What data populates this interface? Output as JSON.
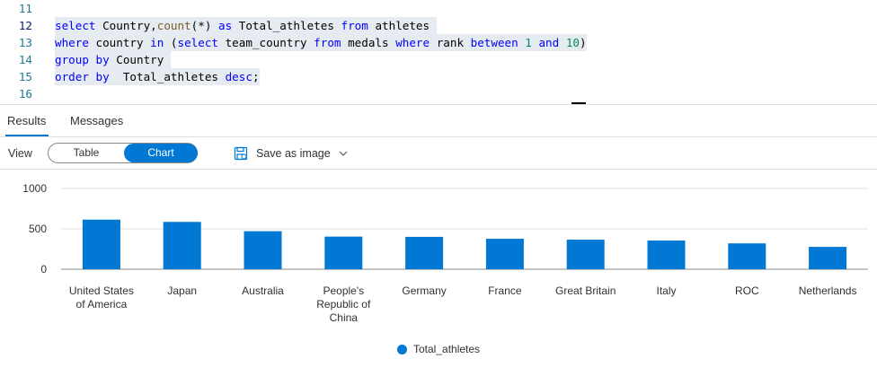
{
  "editor": {
    "lines": [
      {
        "num": "11",
        "active": false,
        "tokens": []
      },
      {
        "num": "12",
        "active": true,
        "tokens": [
          {
            "t": "select",
            "c": "kw"
          },
          {
            "t": " Country,",
            "c": "plain"
          },
          {
            "t": "count",
            "c": "fn"
          },
          {
            "t": "(*) ",
            "c": "plain"
          },
          {
            "t": "as",
            "c": "kw"
          },
          {
            "t": " Total_athletes ",
            "c": "plain"
          },
          {
            "t": "from",
            "c": "kw"
          },
          {
            "t": " athletes ",
            "c": "plain"
          }
        ]
      },
      {
        "num": "13",
        "active": false,
        "tokens": [
          {
            "t": "where",
            "c": "kw"
          },
          {
            "t": " country ",
            "c": "plain"
          },
          {
            "t": "in",
            "c": "kw"
          },
          {
            "t": " (",
            "c": "plain"
          },
          {
            "t": "select",
            "c": "kw"
          },
          {
            "t": " team_country ",
            "c": "plain"
          },
          {
            "t": "from",
            "c": "kw"
          },
          {
            "t": " medals ",
            "c": "plain"
          },
          {
            "t": "where",
            "c": "kw"
          },
          {
            "t": " rank ",
            "c": "plain"
          },
          {
            "t": "between",
            "c": "kw"
          },
          {
            "t": " ",
            "c": "plain"
          },
          {
            "t": "1",
            "c": "num"
          },
          {
            "t": " ",
            "c": "plain"
          },
          {
            "t": "and",
            "c": "kw"
          },
          {
            "t": " ",
            "c": "plain"
          },
          {
            "t": "10",
            "c": "num"
          },
          {
            "t": ")",
            "c": "plain"
          }
        ]
      },
      {
        "num": "14",
        "active": false,
        "tokens": [
          {
            "t": "group",
            "c": "kw"
          },
          {
            "t": " ",
            "c": "plain"
          },
          {
            "t": "by",
            "c": "kw"
          },
          {
            "t": " Country ",
            "c": "plain"
          }
        ]
      },
      {
        "num": "15",
        "active": false,
        "tokens": [
          {
            "t": "order",
            "c": "kw"
          },
          {
            "t": " ",
            "c": "plain"
          },
          {
            "t": "by",
            "c": "kw"
          },
          {
            "t": "  Total_athletes ",
            "c": "plain"
          },
          {
            "t": "desc",
            "c": "kw"
          },
          {
            "t": ";",
            "c": "plain"
          }
        ]
      },
      {
        "num": "16",
        "active": false,
        "tokens": []
      }
    ]
  },
  "tabs": {
    "results": "Results",
    "messages": "Messages"
  },
  "viewbar": {
    "label": "View",
    "table": "Table",
    "chart": "Chart",
    "save": "Save as image"
  },
  "colors": {
    "accent": "#0078d4",
    "bar": "#0078d4"
  },
  "chart_data": {
    "type": "bar",
    "categories": [
      [
        "United States",
        "of America"
      ],
      [
        "Japan"
      ],
      [
        "Australia"
      ],
      [
        "People's",
        "Republic of",
        "China"
      ],
      [
        "Germany"
      ],
      [
        "France"
      ],
      [
        "Great Britain"
      ],
      [
        "Italy"
      ],
      [
        "ROC"
      ],
      [
        "Netherlands"
      ]
    ],
    "series": [
      {
        "name": "Total_athletes",
        "values": [
          614,
          586,
          471,
          404,
          401,
          377,
          366,
          356,
          320,
          277
        ]
      }
    ],
    "yticks": [
      0,
      500,
      1000
    ],
    "ylim": [
      0,
      1000
    ],
    "grid": true,
    "legend": "bottom"
  }
}
